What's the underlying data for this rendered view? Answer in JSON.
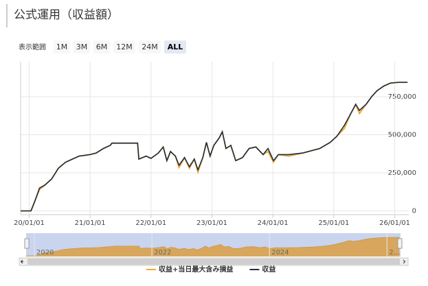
{
  "chart_data": {
    "type": "line",
    "title": "公式運用（収益額）",
    "range_selector": {
      "label": "表示範囲",
      "buttons": [
        "1M",
        "3M",
        "6M",
        "12M",
        "24M",
        "ALL"
      ],
      "selected": "ALL"
    },
    "x": [
      2019.86,
      2020.03,
      2020.09,
      2020.17,
      2020.26,
      2020.37,
      2020.48,
      2020.6,
      2020.71,
      2020.82,
      2021.0,
      2021.1,
      2021.22,
      2021.33,
      2021.36,
      2021.56,
      2021.73,
      2021.78,
      2021.8,
      2021.92,
      2022.0,
      2022.12,
      2022.2,
      2022.26,
      2022.32,
      2022.4,
      2022.46,
      2022.55,
      2022.63,
      2022.71,
      2022.77,
      2022.85,
      2022.91,
      2022.97,
      2023.03,
      2023.12,
      2023.17,
      2023.23,
      2023.31,
      2023.39,
      2023.5,
      2023.61,
      2023.72,
      2023.84,
      2023.92,
      2024.01,
      2024.09,
      2024.26,
      2024.49,
      2024.77,
      2024.94,
      2025.05,
      2025.17,
      2025.28,
      2025.36,
      2025.42,
      2025.53,
      2025.62,
      2025.71,
      2025.82,
      2025.93,
      2026.07,
      2026.21
    ],
    "series": [
      {
        "name": "収益+当日最大含み損益",
        "color": "#f0a830",
        "values": [
          0,
          0,
          60000,
          140000,
          170000,
          210000,
          280000,
          320000,
          340000,
          360000,
          370000,
          380000,
          410000,
          430000,
          445000,
          445000,
          445000,
          445000,
          340000,
          360000,
          345000,
          380000,
          420000,
          330000,
          390000,
          360000,
          285000,
          350000,
          280000,
          340000,
          255000,
          350000,
          450000,
          360000,
          430000,
          480000,
          520000,
          410000,
          430000,
          330000,
          350000,
          410000,
          420000,
          370000,
          390000,
          320000,
          370000,
          360000,
          380000,
          410000,
          450000,
          490000,
          540000,
          640000,
          700000,
          640000,
          700000,
          750000,
          790000,
          820000,
          840000,
          845000,
          845000
        ]
      },
      {
        "name": "収益",
        "color": "#1d2d44",
        "values": [
          0,
          0,
          60000,
          150000,
          170000,
          210000,
          280000,
          320000,
          340000,
          360000,
          370000,
          380000,
          410000,
          430000,
          445000,
          445000,
          445000,
          445000,
          340000,
          360000,
          345000,
          380000,
          420000,
          330000,
          390000,
          360000,
          300000,
          350000,
          290000,
          340000,
          270000,
          350000,
          450000,
          360000,
          430000,
          480000,
          520000,
          410000,
          430000,
          330000,
          350000,
          410000,
          420000,
          370000,
          410000,
          330000,
          370000,
          370000,
          380000,
          410000,
          450000,
          490000,
          560000,
          640000,
          700000,
          660000,
          700000,
          750000,
          790000,
          820000,
          840000,
          845000,
          845000
        ]
      }
    ],
    "xlim": [
      2019.86,
      2026.23
    ],
    "xticks": [
      {
        "value": 2020,
        "label": "20/01/01"
      },
      {
        "value": 2021,
        "label": "21/01/01"
      },
      {
        "value": 2022,
        "label": "22/01/01"
      },
      {
        "value": 2023,
        "label": "23/01/01"
      },
      {
        "value": 2024,
        "label": "24/01/01"
      },
      {
        "value": 2025,
        "label": "25/01/01"
      },
      {
        "value": 2026,
        "label": "26/01/01"
      }
    ],
    "ylim": [
      -25000,
      980000
    ],
    "yticks": [
      0,
      {
        "value": 250000,
        "label": "250,000"
      },
      {
        "value": 500000,
        "label": "500,000"
      },
      {
        "value": 750000,
        "label": "750,000"
      }
    ],
    "grid": true,
    "navigator": {
      "labels": [
        {
          "value": 2020,
          "label": "2020"
        },
        {
          "value": 2022,
          "label": "2022"
        },
        {
          "value": 2024,
          "label": "2024"
        },
        {
          "value": 2026,
          "label": "2…"
        }
      ]
    }
  }
}
